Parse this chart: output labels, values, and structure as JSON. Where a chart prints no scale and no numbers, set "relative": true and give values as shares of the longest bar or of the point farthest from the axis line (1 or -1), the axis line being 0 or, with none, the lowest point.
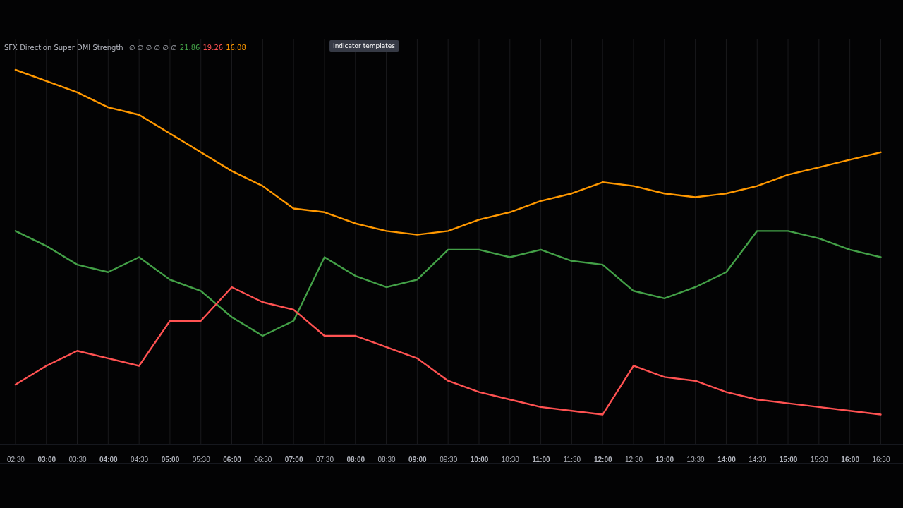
{
  "chart_data": {
    "type": "line",
    "title": "SFX Direction Super DMI Strength",
    "relative": true,
    "grid": "x",
    "annotations": [
      "∅ ∅ ∅ ∅ ∅ ∅",
      "21.86",
      "19.26",
      "16.08",
      "Indicator templates"
    ],
    "xlim": [
      2.25,
      16.86
    ],
    "xticks": [
      {
        "value": 2.5,
        "label": "02:30"
      },
      {
        "value": 3,
        "label": "03:00"
      },
      {
        "value": 3.5,
        "label": "03:30"
      },
      {
        "value": 4,
        "label": "04:00"
      },
      {
        "value": 4.5,
        "label": "04:30"
      },
      {
        "value": 5,
        "label": "05:00"
      },
      {
        "value": 5.5,
        "label": "05:30"
      },
      {
        "value": 6,
        "label": "06:00"
      },
      {
        "value": 6.5,
        "label": "06:30"
      },
      {
        "value": 7,
        "label": "07:00"
      },
      {
        "value": 7.5,
        "label": "07:30"
      },
      {
        "value": 8,
        "label": "08:00"
      },
      {
        "value": 8.5,
        "label": "08:30"
      },
      {
        "value": 9,
        "label": "09:00"
      },
      {
        "value": 9.5,
        "label": "09:30"
      },
      {
        "value": 10,
        "label": "10:00"
      },
      {
        "value": 10.5,
        "label": "10:30"
      },
      {
        "value": 11,
        "label": "11:00"
      },
      {
        "value": 11.5,
        "label": "11:30"
      },
      {
        "value": 12,
        "label": "12:00"
      },
      {
        "value": 12.5,
        "label": "12:30"
      },
      {
        "value": 13,
        "label": "13:00"
      },
      {
        "value": 13.5,
        "label": "13:30"
      },
      {
        "value": 14,
        "label": "14:00"
      },
      {
        "value": 14.5,
        "label": "14:30"
      },
      {
        "value": 15,
        "label": "15:00"
      },
      {
        "value": 15.5,
        "label": "15:30"
      },
      {
        "value": 16,
        "label": "16:00"
      },
      {
        "value": 16.5,
        "label": "16:30"
      }
    ],
    "x": [
      2.5,
      3,
      3.5,
      4,
      4.5,
      5,
      5.5,
      6,
      6.5,
      7,
      7.5,
      8,
      8.5,
      9,
      9.5,
      10,
      10.5,
      11,
      11.5,
      12,
      12.5,
      13,
      13.5,
      14,
      14.5,
      15,
      15.5,
      16,
      16.5
    ],
    "series": [
      {
        "color": "#43a047",
        "values": [
          0.57,
          0.53,
          0.48,
          0.46,
          0.5,
          0.44,
          0.41,
          0.34,
          0.29,
          0.33,
          0.5,
          0.45,
          0.42,
          0.44,
          0.52,
          0.52,
          0.5,
          0.52,
          0.49,
          0.48,
          0.41,
          0.39,
          0.42,
          0.46,
          0.57,
          0.57,
          0.55,
          0.52,
          0.5
        ]
      },
      {
        "color": "#ff5252",
        "values": [
          0.16,
          0.21,
          0.25,
          0.23,
          0.21,
          0.33,
          0.33,
          0.42,
          0.38,
          0.36,
          0.29,
          0.29,
          0.26,
          0.23,
          0.17,
          0.14,
          0.12,
          0.1,
          0.09,
          0.08,
          0.21,
          0.18,
          0.17,
          0.14,
          0.12,
          0.11,
          0.1,
          0.09,
          0.08
        ]
      },
      {
        "color": "#ff9800",
        "values": [
          1.0,
          0.97,
          0.94,
          0.9,
          0.88,
          0.83,
          0.78,
          0.73,
          0.69,
          0.63,
          0.62,
          0.59,
          0.57,
          0.56,
          0.57,
          0.6,
          0.62,
          0.65,
          0.67,
          0.7,
          0.69,
          0.67,
          0.66,
          0.67,
          0.69,
          0.72,
          0.74,
          0.76,
          0.78
        ]
      }
    ]
  }
}
